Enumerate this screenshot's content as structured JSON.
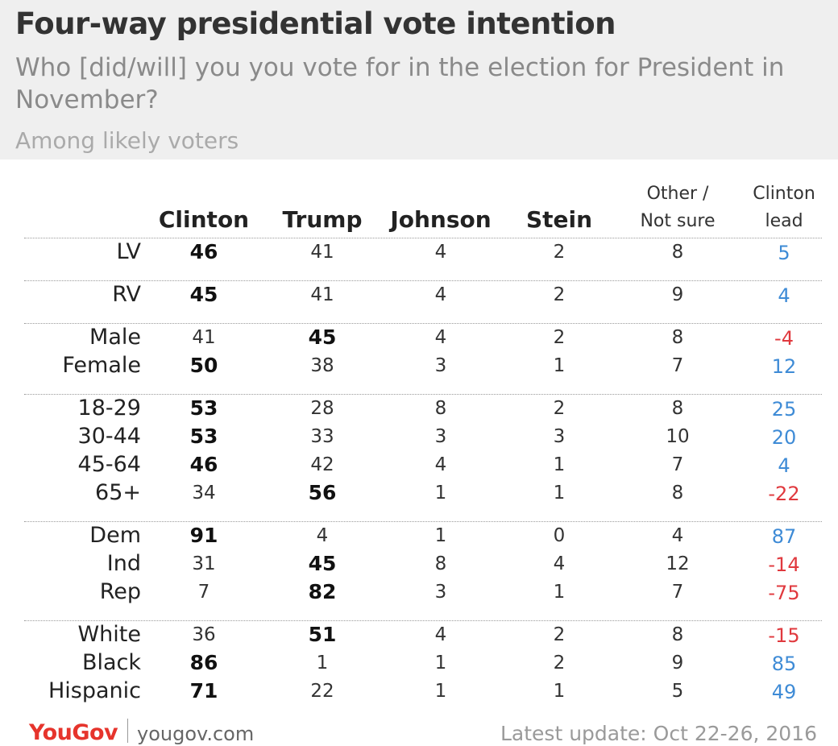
{
  "title": "Four-way presidential vote intention",
  "subtitle": "Who [did/will] you you vote for in the election for President in November?",
  "note": "Among likely voters",
  "footer": {
    "brand": "YouGov",
    "site": "yougov.com",
    "update": "Latest update: Oct 22-26, 2016"
  },
  "colors": {
    "positive": "#3e8bd6",
    "negative": "#e0393e"
  },
  "chart_data": {
    "type": "table",
    "columns": [
      "Clinton",
      "Trump",
      "Johnson",
      "Stein"
    ],
    "other_header": [
      "Other /",
      "Not sure"
    ],
    "lead_header": [
      "Clinton",
      "lead"
    ],
    "groups": [
      [
        {
          "label": "LV",
          "values": [
            46,
            41,
            4,
            2,
            8
          ],
          "lead": "5",
          "winner": 0
        }
      ],
      [
        {
          "label": "RV",
          "values": [
            45,
            41,
            4,
            2,
            9
          ],
          "lead": "4",
          "winner": 0
        }
      ],
      [
        {
          "label": "Male",
          "values": [
            41,
            45,
            4,
            2,
            8
          ],
          "lead": "-4",
          "winner": 1
        },
        {
          "label": "Female",
          "values": [
            50,
            38,
            3,
            1,
            7
          ],
          "lead": "12",
          "winner": 0
        }
      ],
      [
        {
          "label": "18-29",
          "values": [
            53,
            28,
            8,
            2,
            8
          ],
          "lead": "25",
          "winner": 0
        },
        {
          "label": "30-44",
          "values": [
            53,
            33,
            3,
            3,
            10
          ],
          "lead": "20",
          "winner": 0
        },
        {
          "label": "45-64",
          "values": [
            46,
            42,
            4,
            1,
            7
          ],
          "lead": "4",
          "winner": 0
        },
        {
          "label": "65+",
          "values": [
            34,
            56,
            1,
            1,
            8
          ],
          "lead": "-22",
          "winner": 1
        }
      ],
      [
        {
          "label": "Dem",
          "values": [
            91,
            4,
            1,
            0,
            4
          ],
          "lead": "87",
          "winner": 0
        },
        {
          "label": "Ind",
          "values": [
            31,
            45,
            8,
            4,
            12
          ],
          "lead": "-14",
          "winner": 1
        },
        {
          "label": "Rep",
          "values": [
            7,
            82,
            3,
            1,
            7
          ],
          "lead": "-75",
          "winner": 1
        }
      ],
      [
        {
          "label": "White",
          "values": [
            36,
            51,
            4,
            2,
            8
          ],
          "lead": "-15",
          "winner": 1
        },
        {
          "label": "Black",
          "values": [
            86,
            1,
            1,
            2,
            9
          ],
          "lead": "85",
          "winner": 0
        },
        {
          "label": "Hispanic",
          "values": [
            71,
            22,
            1,
            1,
            5
          ],
          "lead": "49",
          "winner": 0
        }
      ]
    ]
  }
}
